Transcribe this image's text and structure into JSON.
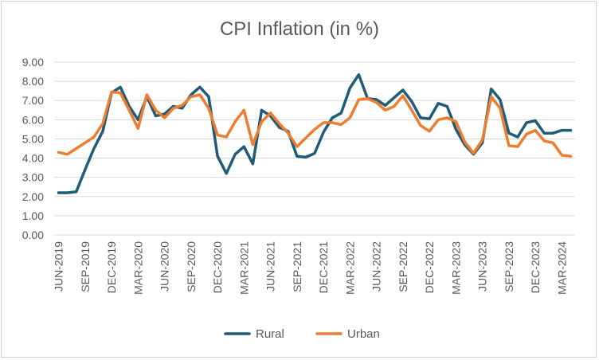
{
  "chart_data": {
    "type": "line",
    "title": "CPI Inflation (in %)",
    "xlabel": "",
    "ylabel": "",
    "ylim": [
      0,
      9
    ],
    "yticks": [
      "0.00",
      "1.00",
      "2.00",
      "3.00",
      "4.00",
      "5.00",
      "6.00",
      "7.00",
      "8.00",
      "9.00"
    ],
    "x": [
      "JUN-2019",
      "JUL-2019",
      "AUG-2019",
      "SEP-2019",
      "OCT-2019",
      "NOV-2019",
      "DEC-2019",
      "JAN-2020",
      "FEB-2020",
      "MAR-2020",
      "APR-2020",
      "MAY-2020",
      "JUN-2020",
      "JUL-2020",
      "AUG-2020",
      "SEP-2020",
      "OCT-2020",
      "NOV-2020",
      "DEC-2020",
      "JAN-2021",
      "FEB-2021",
      "MAR-2021",
      "APR-2021",
      "MAY-2021",
      "JUN-2021",
      "JUL-2021",
      "AUG-2021",
      "SEP-2021",
      "OCT-2021",
      "NOV-2021",
      "DEC-2021",
      "JAN-2022",
      "FEB-2022",
      "MAR-2022",
      "APR-2022",
      "MAY-2022",
      "JUN-2022",
      "JUL-2022",
      "AUG-2022",
      "SEP-2022",
      "OCT-2022",
      "NOV-2022",
      "DEC-2022",
      "JAN-2023",
      "FEB-2023",
      "MAR-2023",
      "APR-2023",
      "MAY-2023",
      "JUN-2023",
      "JUL-2023",
      "AUG-2023",
      "SEP-2023",
      "OCT-2023",
      "NOV-2023",
      "DEC-2023",
      "JAN-2024",
      "FEB-2024",
      "MAR-2024",
      "APR-2024"
    ],
    "xtick_labels": [
      "JUN-2019",
      "SEP-2019",
      "DEC-2019",
      "MAR-2020",
      "JUN-2020",
      "SEP-2020",
      "DEC-2020",
      "MAR-2021",
      "JUN-2021",
      "SEP-2021",
      "DEC-2021",
      "MAR-2022",
      "JUN-2022",
      "SEP-2022",
      "DEC-2022",
      "MAR-2023",
      "JUN-2023",
      "SEP-2023",
      "DEC-2023",
      "MAR-2024"
    ],
    "series": [
      {
        "name": "Rural",
        "color": "#1f5c7a",
        "values": [
          2.2,
          2.2,
          2.25,
          3.4,
          4.5,
          5.4,
          7.4,
          7.7,
          6.7,
          6.0,
          7.2,
          6.2,
          6.3,
          6.7,
          6.6,
          7.3,
          7.7,
          7.2,
          4.1,
          3.2,
          4.2,
          4.6,
          3.7,
          6.5,
          6.2,
          5.6,
          5.4,
          4.1,
          4.05,
          4.25,
          5.35,
          6.1,
          6.35,
          7.65,
          8.35,
          7.1,
          7.05,
          6.75,
          7.15,
          7.55,
          6.95,
          6.1,
          6.05,
          6.85,
          6.7,
          5.5,
          4.7,
          4.2,
          4.8,
          7.6,
          7.05,
          5.3,
          5.1,
          5.85,
          5.95,
          5.3,
          5.3,
          5.45,
          5.45
        ]
      },
      {
        "name": "Urban",
        "color": "#ed7d31",
        "values": [
          4.3,
          4.2,
          4.5,
          4.8,
          5.1,
          5.8,
          7.45,
          7.4,
          6.5,
          5.55,
          7.3,
          6.5,
          6.1,
          6.6,
          6.75,
          7.2,
          7.3,
          6.6,
          5.2,
          5.1,
          5.9,
          6.5,
          4.7,
          5.9,
          6.35,
          5.8,
          5.3,
          4.6,
          5.05,
          5.5,
          5.85,
          5.85,
          5.75,
          6.1,
          7.05,
          7.1,
          6.9,
          6.5,
          6.7,
          7.25,
          6.5,
          5.7,
          5.4,
          6.0,
          6.1,
          5.9,
          4.85,
          4.25,
          4.95,
          7.2,
          6.6,
          4.65,
          4.6,
          5.25,
          5.45,
          4.9,
          4.8,
          4.15,
          4.1
        ]
      }
    ],
    "grid": true,
    "legend": "bottom"
  }
}
